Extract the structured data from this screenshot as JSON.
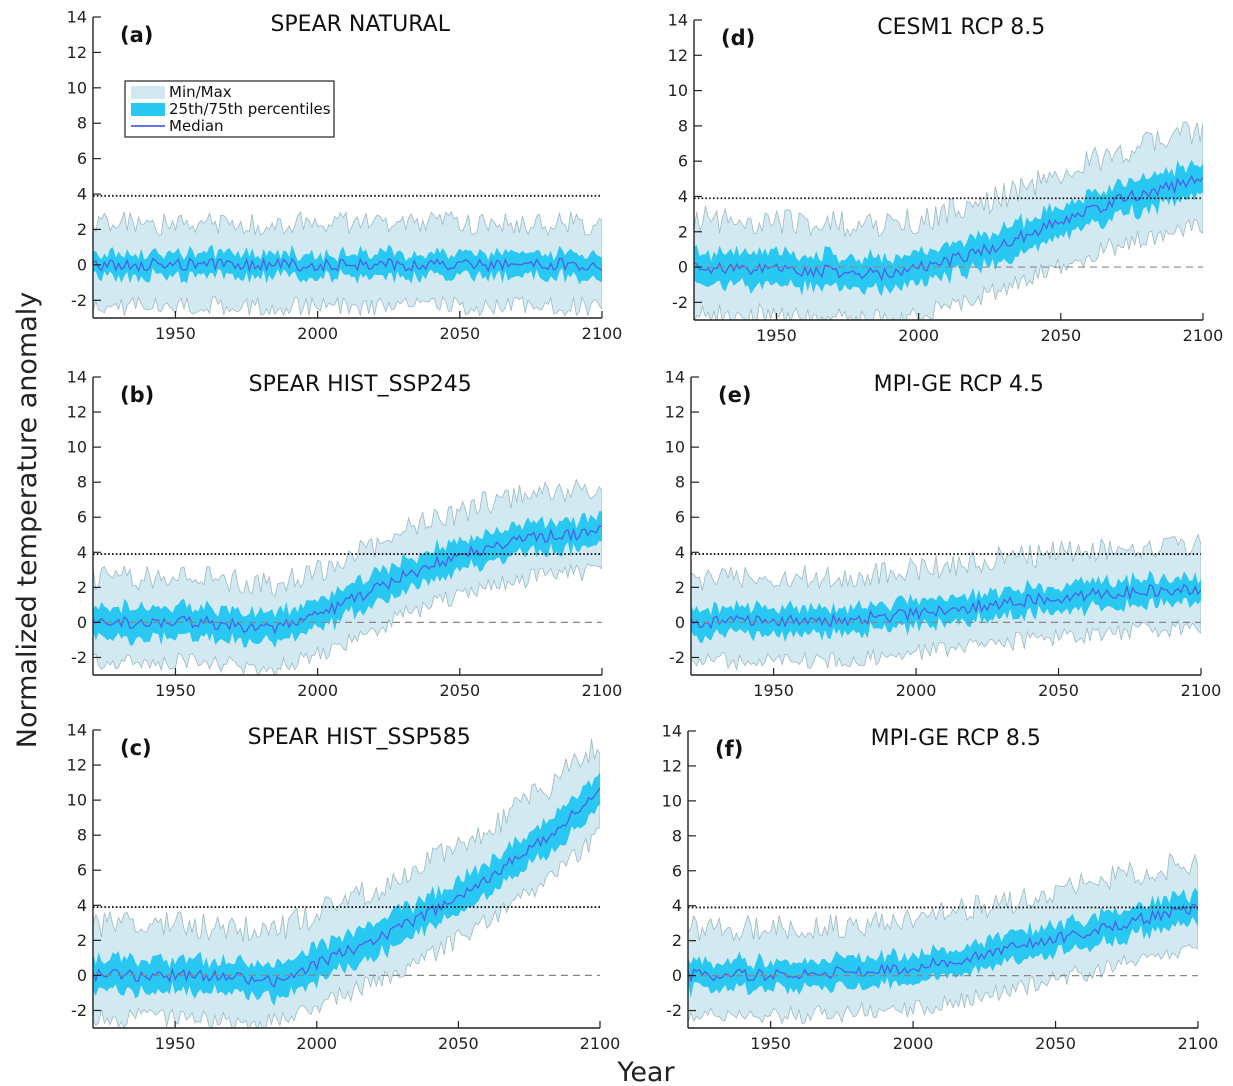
{
  "figure": {
    "ylabel": "Normalized temperature anomaly",
    "xlabel": "Year"
  },
  "legend": {
    "entries": [
      {
        "label": "Min/Max",
        "color": "#d3e9f1"
      },
      {
        "label": "25th/75th percentiles",
        "color": "#29c8f2"
      },
      {
        "label": "Median",
        "color": "#4d5fe6"
      }
    ]
  },
  "colors": {
    "minmax": "#d3e9f1",
    "minmax_edge": "#9bb9c3",
    "pct": "#29c8f2",
    "median": "#4d5fe6",
    "threshold": "#111111",
    "zero": "#888888"
  },
  "chart_data": [
    {
      "type": "area",
      "panel": "(a)",
      "title": "SPEAR NATURAL",
      "x": [
        1921,
        2100
      ],
      "median_keypoints": [
        [
          1921,
          0.0
        ],
        [
          2100,
          0.0
        ]
      ],
      "iqr_halfwidth": 0.65,
      "spread_below": 2.4,
      "spread_above": 2.4,
      "threshold": 3.9,
      "zero_line": false,
      "xticks": [
        1950,
        2000,
        2050,
        2100
      ],
      "yticks": [
        -2,
        0,
        2,
        4,
        6,
        8,
        10,
        12,
        14
      ],
      "xlim": [
        1921,
        2100
      ],
      "ylim": [
        -3,
        14
      ],
      "legend": true
    },
    {
      "type": "area",
      "panel": "(b)",
      "title": "SPEAR HIST_SSP245",
      "x": [
        1921,
        2100
      ],
      "median_keypoints": [
        [
          1921,
          0.0
        ],
        [
          1960,
          0.0
        ],
        [
          1985,
          -0.4
        ],
        [
          2000,
          0.4
        ],
        [
          2020,
          1.9
        ],
        [
          2040,
          3.3
        ],
        [
          2060,
          4.3
        ],
        [
          2080,
          4.9
        ],
        [
          2100,
          5.2
        ]
      ],
      "iqr_halfwidth": 0.85,
      "spread_below": 2.3,
      "spread_above": 2.6,
      "threshold": 3.9,
      "zero_line": true,
      "xticks": [
        1950,
        2000,
        2050,
        2100
      ],
      "yticks": [
        -2,
        0,
        2,
        4,
        6,
        8,
        10,
        12,
        14
      ],
      "xlim": [
        1921,
        2100
      ],
      "ylim": [
        -3,
        14
      ],
      "legend": false
    },
    {
      "type": "area",
      "panel": "(c)",
      "title": "SPEAR HIST_SSP585",
      "x": [
        1921,
        2100
      ],
      "median_keypoints": [
        [
          1921,
          0.0
        ],
        [
          1960,
          0.0
        ],
        [
          1985,
          -0.3
        ],
        [
          2000,
          0.7
        ],
        [
          2020,
          2.0
        ],
        [
          2040,
          3.6
        ],
        [
          2060,
          5.5
        ],
        [
          2080,
          7.7
        ],
        [
          2100,
          10.5
        ]
      ],
      "iqr_halfwidth": 0.95,
      "spread_below": 2.5,
      "spread_above": 2.9,
      "threshold": 3.9,
      "zero_line": true,
      "xticks": [
        1950,
        2000,
        2050,
        2100
      ],
      "yticks": [
        -2,
        0,
        2,
        4,
        6,
        8,
        10,
        12,
        14
      ],
      "xlim": [
        1921,
        2100
      ],
      "ylim": [
        -3,
        14
      ],
      "legend": false
    },
    {
      "type": "area",
      "panel": "(d)",
      "title": "CESM1 RCP 8.5",
      "x": [
        1921,
        2100
      ],
      "median_keypoints": [
        [
          1921,
          0.0
        ],
        [
          1960,
          -0.2
        ],
        [
          1990,
          -0.4
        ],
        [
          2010,
          0.3
        ],
        [
          2030,
          1.3
        ],
        [
          2050,
          2.6
        ],
        [
          2070,
          3.8
        ],
        [
          2090,
          4.6
        ],
        [
          2100,
          5.0
        ]
      ],
      "iqr_halfwidth": 0.9,
      "spread_below": 2.6,
      "spread_above": 2.8,
      "threshold": 3.9,
      "zero_line": true,
      "xticks": [
        1950,
        2000,
        2050,
        2100
      ],
      "yticks": [
        -2,
        0,
        2,
        4,
        6,
        8,
        10,
        12,
        14
      ],
      "xlim": [
        1921,
        2100
      ],
      "ylim": [
        -3,
        14
      ],
      "legend": false
    },
    {
      "type": "area",
      "panel": "(e)",
      "title": "MPI-GE RCP 4.5",
      "x": [
        1921,
        2100
      ],
      "median_keypoints": [
        [
          1921,
          0.0
        ],
        [
          1970,
          0.1
        ],
        [
          2000,
          0.5
        ],
        [
          2030,
          1.1
        ],
        [
          2060,
          1.6
        ],
        [
          2080,
          1.8
        ],
        [
          2100,
          1.9
        ]
      ],
      "iqr_halfwidth": 0.75,
      "spread_below": 2.3,
      "spread_above": 2.6,
      "threshold": 3.9,
      "zero_line": true,
      "xticks": [
        1950,
        2000,
        2050,
        2100
      ],
      "yticks": [
        -2,
        0,
        2,
        4,
        6,
        8,
        10,
        12,
        14
      ],
      "xlim": [
        1921,
        2100
      ],
      "ylim": [
        -3,
        14
      ],
      "legend": false
    },
    {
      "type": "area",
      "panel": "(f)",
      "title": "MPI-GE RCP 8.5",
      "x": [
        1921,
        2100
      ],
      "median_keypoints": [
        [
          1921,
          0.0
        ],
        [
          1970,
          0.1
        ],
        [
          2000,
          0.5
        ],
        [
          2030,
          1.4
        ],
        [
          2060,
          2.5
        ],
        [
          2080,
          3.2
        ],
        [
          2100,
          3.9
        ]
      ],
      "iqr_halfwidth": 0.8,
      "spread_below": 2.4,
      "spread_above": 2.8,
      "threshold": 3.9,
      "zero_line": true,
      "xticks": [
        1950,
        2000,
        2050,
        2100
      ],
      "yticks": [
        -2,
        0,
        2,
        4,
        6,
        8,
        10,
        12,
        14
      ],
      "xlim": [
        1921,
        2100
      ],
      "ylim": [
        -3,
        14
      ],
      "legend": false
    }
  ]
}
